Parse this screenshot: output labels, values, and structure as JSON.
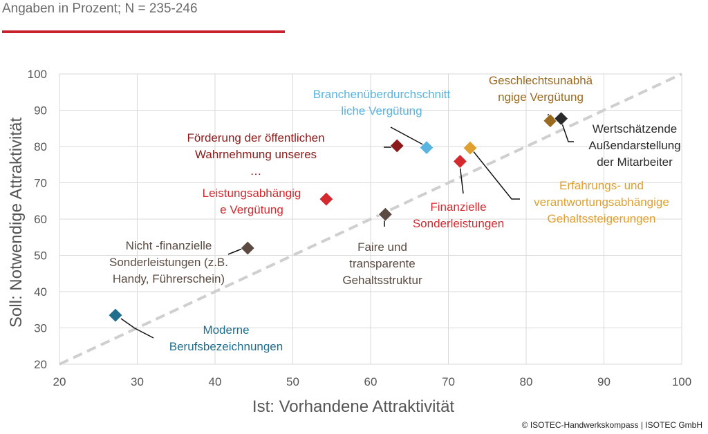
{
  "header": {
    "subtitle": "Angaben in Prozent; N = 235-246",
    "copyright": "© ISOTEC-Handwerkskompass | ISOTEC GmbH",
    "accent_color": "#c8232c"
  },
  "chart_data": {
    "type": "scatter",
    "xlabel": "Ist: Vorhandene Attraktivität",
    "ylabel": "Soll: Notwendige Attraktivität",
    "xlim": [
      20,
      100
    ],
    "ylim": [
      20,
      100
    ],
    "xticks": [
      20,
      30,
      40,
      50,
      60,
      70,
      80,
      90,
      100
    ],
    "yticks": [
      20,
      30,
      40,
      50,
      60,
      70,
      80,
      90,
      100
    ],
    "grid": true,
    "reference_line": "diagonal y = x (dashed)",
    "points": [
      {
        "label": [
          "Moderne",
          "Berufsbezeichnungen"
        ],
        "x": 27.2,
        "y": 33.5,
        "color": "#1f6e8c"
      },
      {
        "label": [
          "Nicht -finanzielle",
          "Sonderleistungen (z.B.",
          "Handy, Führerschein)"
        ],
        "x": 44.2,
        "y": 52,
        "color": "#5a4a42"
      },
      {
        "label": [
          "Leistungsabhängig",
          "e Vergütung"
        ],
        "x": 54.3,
        "y": 65.5,
        "color": "#d42a2f"
      },
      {
        "label": [
          "Faire und",
          "transparente",
          "Gehaltsstruktur"
        ],
        "x": 61.9,
        "y": 61.3,
        "color": "#5a4a42"
      },
      {
        "label": [
          "Förderung der öffentlichen",
          "Wahrnehmung unseres",
          "…"
        ],
        "x": 63.4,
        "y": 80.2,
        "color": "#8b1a1a"
      },
      {
        "label": [
          "Branchenüberdurchschnitt",
          "liche Vergütung"
        ],
        "x": 67.2,
        "y": 79.7,
        "color": "#5ab4e0"
      },
      {
        "label": [
          "Finanzielle",
          "Sonderleistungen"
        ],
        "x": 71.5,
        "y": 75.9,
        "color": "#d42a2f"
      },
      {
        "label": [
          "Erfahrungs-  und",
          "verantwortungsabhängige",
          "Gehaltssteigerungen"
        ],
        "x": 72.8,
        "y": 79.6,
        "color": "#e0a030"
      },
      {
        "label": [
          "Geschlechtsunabhä",
          "ngige Vergütung"
        ],
        "x": 83.1,
        "y": 87.1,
        "color": "#9a6a20"
      },
      {
        "label": [
          "Wertschätzende",
          "Außendarstellung",
          "der Mitarbeiter"
        ],
        "x": 84.5,
        "y": 87.7,
        "color": "#2a2a2a"
      }
    ]
  }
}
